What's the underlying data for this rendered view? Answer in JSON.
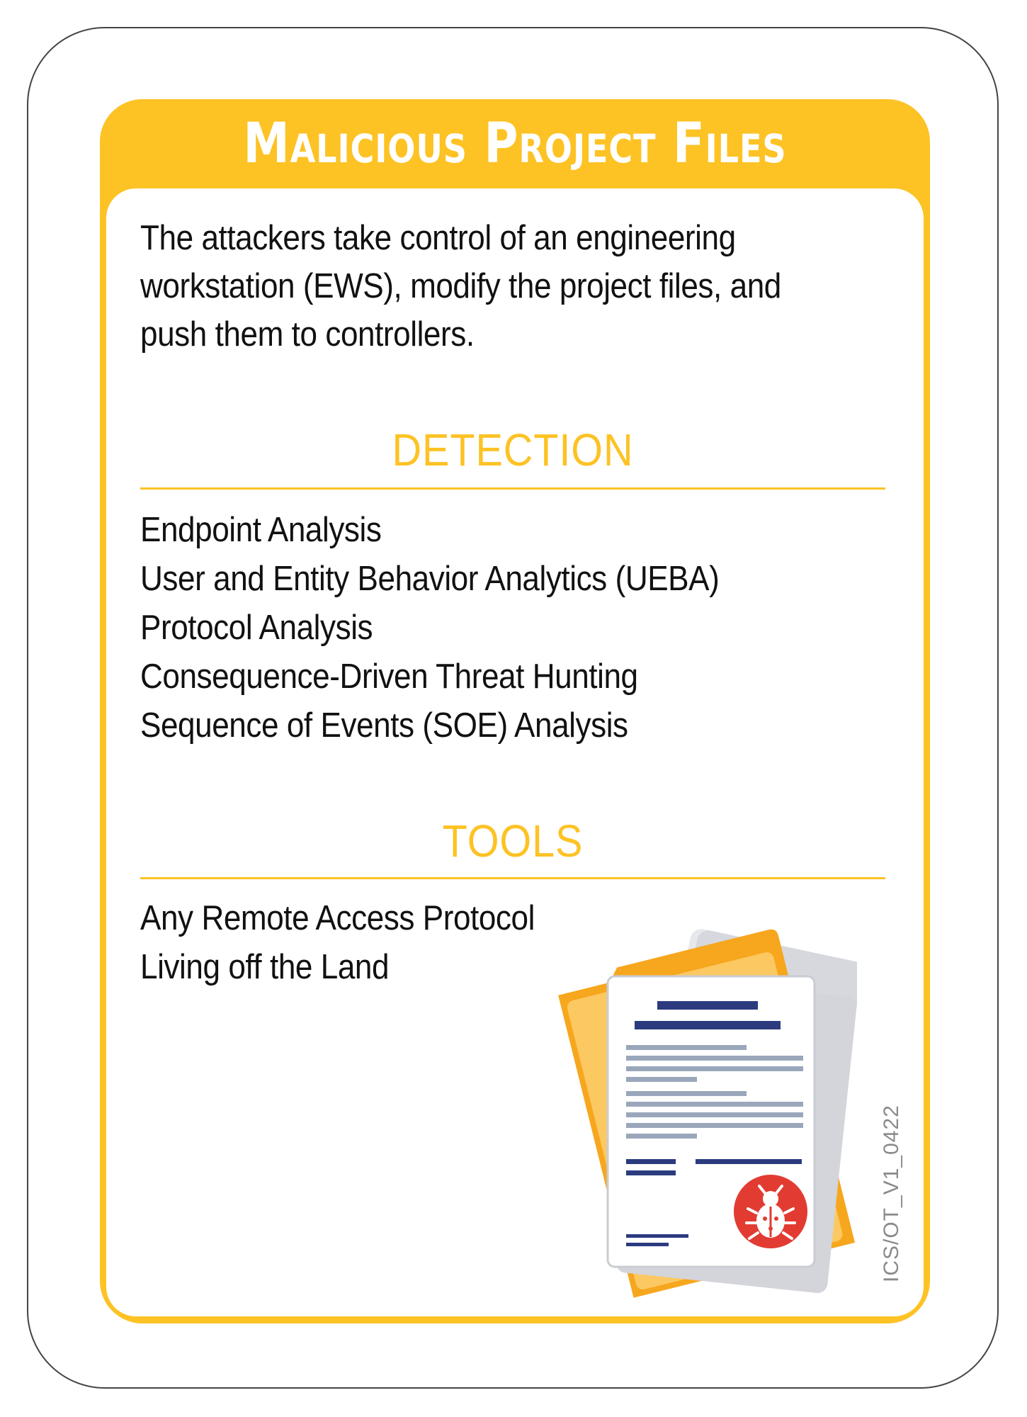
{
  "card": {
    "title": "Malicious Project Files",
    "description": "The attackers take control of an engineering workstation (EWS), modify the project files, and push them to controllers.",
    "accent_color": "#fdc224"
  },
  "detection": {
    "heading": "DETECTION",
    "items": [
      "Endpoint Analysis",
      "User and Entity Behavior Analytics (UEBA)",
      "Protocol Analysis",
      "Consequence-Driven Threat Hunting",
      "Sequence of Events (SOE) Analysis"
    ]
  },
  "tools": {
    "heading": "TOOLS",
    "items": [
      "Any Remote Access Protocol",
      "Living off the Land"
    ]
  },
  "illustration": {
    "icon": "infected-document-icon",
    "badge_icon": "bug-icon"
  },
  "footer": {
    "code": "ICS/OT_V1_0422"
  }
}
